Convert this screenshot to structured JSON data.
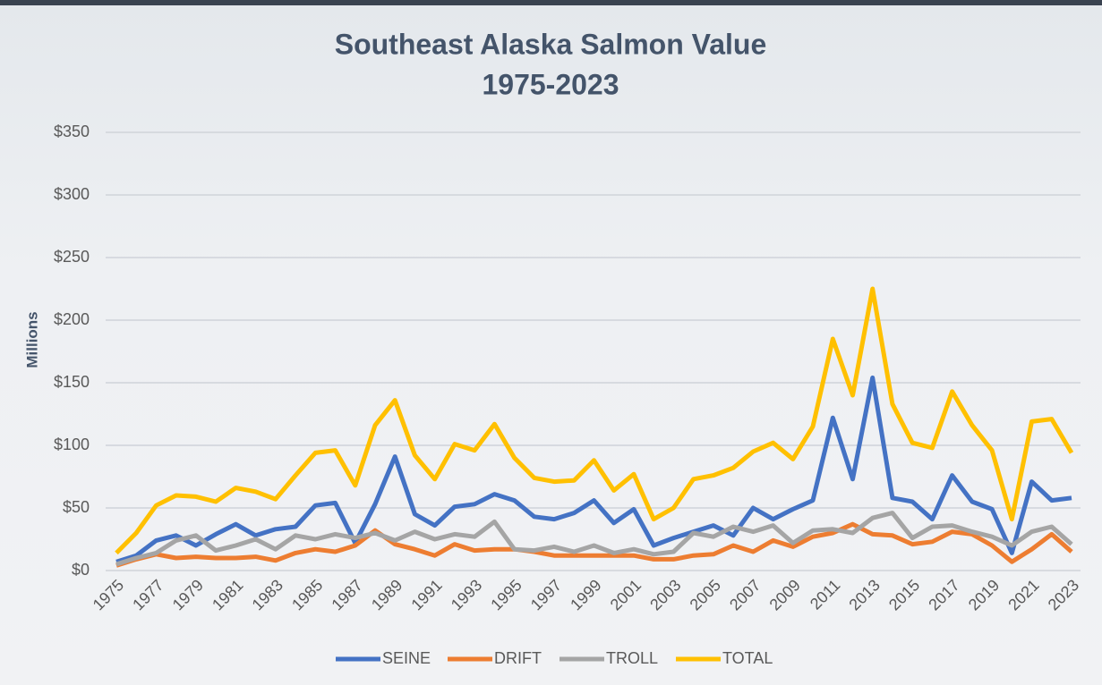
{
  "chart_data": {
    "type": "line",
    "title": "Southeast Alaska Salmon Value",
    "subtitle": "1975-2023",
    "y_label": "Millions",
    "categories": [
      "1975",
      null,
      "1977",
      null,
      "1979",
      null,
      "1981",
      null,
      "1983",
      null,
      "1985",
      null,
      "1987",
      null,
      "1989",
      null,
      "1991",
      null,
      "1993",
      null,
      "1995",
      null,
      "1997",
      null,
      "1999",
      null,
      "2001",
      null,
      "2003",
      null,
      "2005",
      null,
      "2007",
      null,
      "2009",
      null,
      "2011",
      null,
      "2013",
      null,
      "2015",
      null,
      "2017",
      null,
      "2019",
      null,
      "2021",
      null,
      "2023"
    ],
    "series": [
      {
        "name": "SEINE",
        "color": "#4472c4",
        "values": [
          7,
          12,
          24,
          28,
          20,
          29,
          37,
          28,
          33,
          35,
          52,
          54,
          22,
          53,
          91,
          45,
          36,
          51,
          53,
          61,
          56,
          43,
          41,
          46,
          56,
          38,
          49,
          20,
          26,
          31,
          36,
          28,
          50,
          41,
          49,
          56,
          122,
          73,
          154,
          58,
          55,
          41,
          76,
          55,
          49,
          14,
          71,
          56,
          58
        ]
      },
      {
        "name": "DRIFT",
        "color": "#ed7d31",
        "values": [
          4,
          9,
          13,
          10,
          11,
          10,
          10,
          11,
          8,
          14,
          17,
          15,
          20,
          32,
          21,
          17,
          12,
          21,
          16,
          17,
          17,
          15,
          12,
          12,
          12,
          12,
          12,
          9,
          9,
          12,
          13,
          20,
          15,
          24,
          19,
          27,
          30,
          37,
          29,
          28,
          21,
          23,
          31,
          29,
          20,
          7,
          17,
          29,
          15
        ]
      },
      {
        "name": "TROLL",
        "color": "#a5a5a5",
        "values": [
          5,
          10,
          14,
          24,
          28,
          16,
          20,
          25,
          17,
          28,
          25,
          29,
          26,
          30,
          24,
          31,
          25,
          29,
          27,
          39,
          17,
          16,
          19,
          15,
          20,
          14,
          17,
          13,
          15,
          30,
          27,
          35,
          31,
          36,
          22,
          32,
          33,
          30,
          42,
          46,
          26,
          35,
          36,
          31,
          27,
          20,
          31,
          35,
          21
        ]
      },
      {
        "name": "TOTAL",
        "color": "#ffc000",
        "values": [
          14,
          30,
          52,
          60,
          59,
          55,
          66,
          63,
          57,
          76,
          94,
          96,
          68,
          116,
          136,
          92,
          73,
          101,
          96,
          117,
          90,
          74,
          71,
          72,
          88,
          64,
          77,
          41,
          50,
          73,
          76,
          82,
          95,
          102,
          89,
          115,
          185,
          140,
          225,
          133,
          102,
          98,
          143,
          116,
          96,
          41,
          119,
          121,
          94
        ]
      }
    ],
    "ylim": [
      0,
      350
    ],
    "yticks": [
      {
        "value": 0,
        "label": "$0"
      },
      {
        "value": 50,
        "label": "$50"
      },
      {
        "value": 100,
        "label": "$100"
      },
      {
        "value": 150,
        "label": "$150"
      },
      {
        "value": 200,
        "label": "$200"
      },
      {
        "value": 250,
        "label": "$250"
      },
      {
        "value": 300,
        "label": "$300"
      },
      {
        "value": 350,
        "label": "$350"
      }
    ],
    "grid": true,
    "legend": "bottom"
  }
}
